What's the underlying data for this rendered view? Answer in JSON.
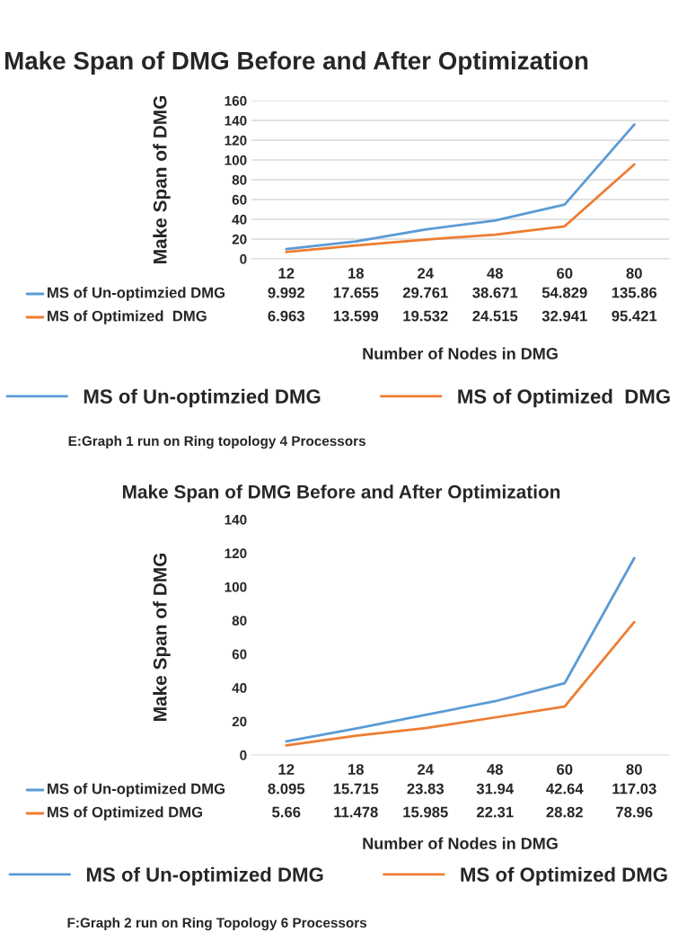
{
  "chart_data": [
    {
      "type": "line",
      "title": "Make Span of DMG Before and After Optimization",
      "xlabel": "Number of Nodes in DMG",
      "ylabel": "Make Span of DMG",
      "categories": [
        "12",
        "18",
        "24",
        "48",
        "60",
        "80"
      ],
      "series": [
        {
          "name": "MS of Un-optimzied DMG",
          "color": "#5b9bd5",
          "values": [
            9.992,
            17.655,
            29.761,
            38.671,
            54.829,
            135.86
          ]
        },
        {
          "name": "MS of Optimized  DMG",
          "color": "#ed7d31",
          "values": [
            6.963,
            13.599,
            19.532,
            24.515,
            32.941,
            95.421
          ]
        }
      ],
      "ylim": [
        0,
        160
      ],
      "yticks": [
        0,
        20,
        40,
        60,
        80,
        100,
        120,
        140,
        160
      ],
      "grid": "y",
      "legend": "bottom",
      "data_labels": true,
      "annotations": [
        "E:Graph 1 run on Ring topology 4 Processors"
      ]
    },
    {
      "type": "line",
      "title": "Make Span of DMG Before and After Optimization",
      "xlabel": "Number of Nodes in DMG",
      "ylabel": "Make Span of DMG",
      "categories": [
        "12",
        "18",
        "24",
        "48",
        "60",
        "80"
      ],
      "series": [
        {
          "name": "MS of Un-optimized DMG",
          "color": "#5b9bd5",
          "values": [
            8.095,
            15.715,
            23.83,
            31.94,
            42.64,
            117.03
          ]
        },
        {
          "name": "MS of Optimized DMG",
          "color": "#ed7d31",
          "values": [
            5.66,
            11.478,
            15.985,
            22.31,
            28.82,
            78.96
          ]
        }
      ],
      "ylim": [
        0,
        140
      ],
      "yticks": [
        0,
        20,
        40,
        60,
        80,
        100,
        120,
        140
      ],
      "legend": "bottom",
      "data_labels": true,
      "annotations": [
        "F:Graph 2 run on Ring Topology 6 Processors"
      ]
    }
  ]
}
